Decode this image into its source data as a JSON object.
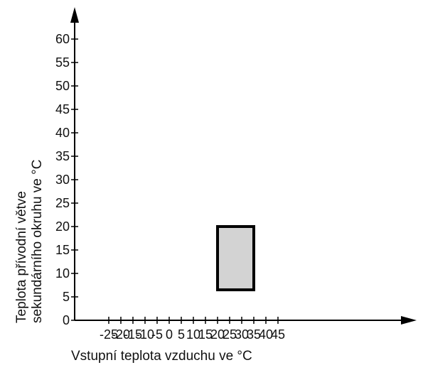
{
  "chart_data": {
    "type": "area",
    "xlabel": "Vstupní teplota vzduchu ve °C",
    "ylabel_lines": [
      "Teplota přívodní větve",
      "sekundárního okruhu ve °C"
    ],
    "x_ticks": [
      -25,
      -20,
      -15,
      -10,
      -5,
      0,
      5,
      10,
      15,
      20,
      25,
      30,
      35,
      40,
      45
    ],
    "x_tick_labels": [
      "-25",
      "-20",
      "-15",
      "-10",
      "-5",
      "0",
      "5",
      "10",
      "15",
      "20",
      "25",
      "30",
      "35",
      "40",
      "45"
    ],
    "y_ticks": [
      0,
      5,
      10,
      15,
      20,
      25,
      30,
      35,
      40,
      45,
      50,
      55,
      60
    ],
    "y_tick_labels": [
      "0",
      "5",
      "10",
      "15",
      "20",
      "25",
      "30",
      "35",
      "40",
      "45",
      "50",
      "55",
      "60"
    ],
    "xlim": [
      -29,
      48
    ],
    "ylim": [
      0,
      62
    ],
    "grid": false,
    "regions": [
      {
        "x_min": 20,
        "x_max": 35,
        "y_min": 6.5,
        "y_max": 20,
        "fill": "#d3d3d3",
        "stroke": "#000000"
      }
    ]
  }
}
